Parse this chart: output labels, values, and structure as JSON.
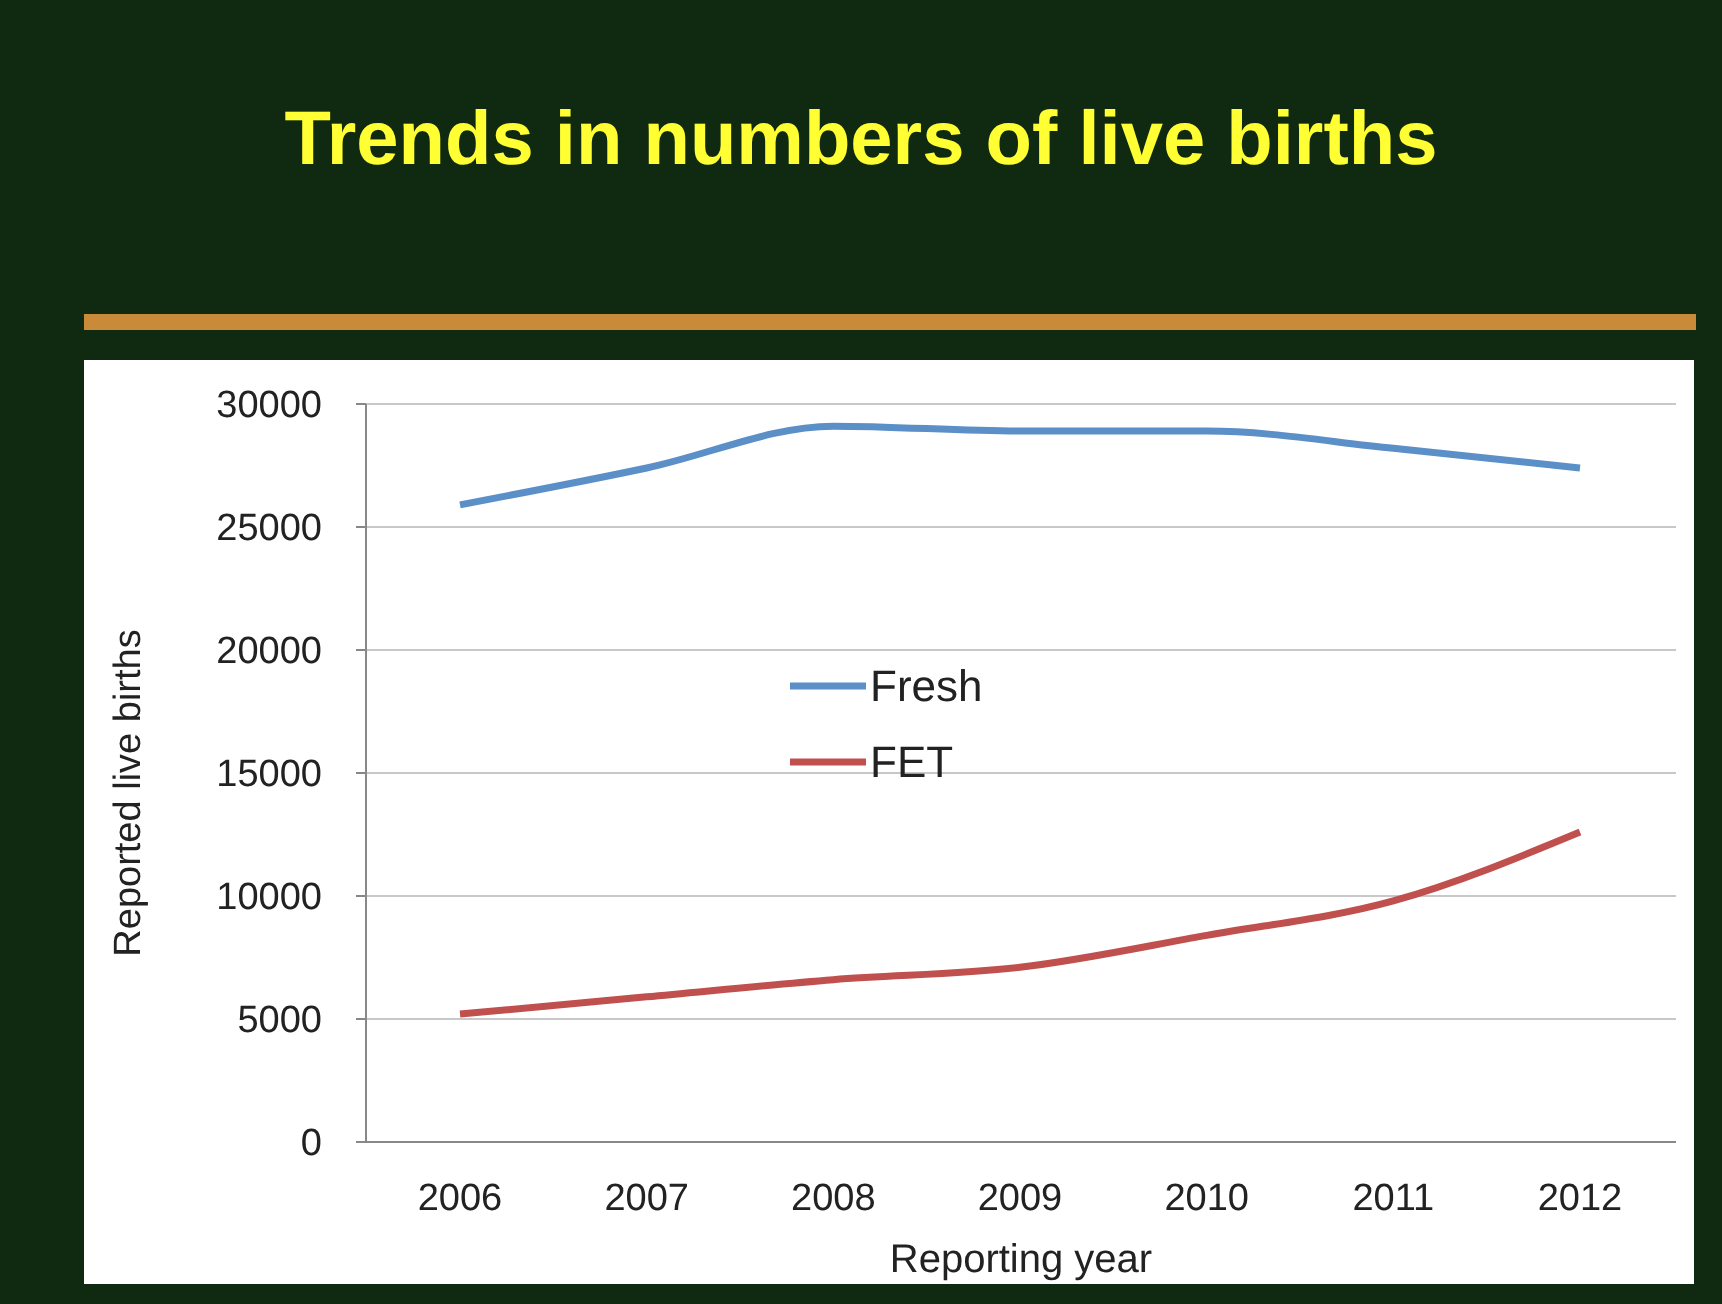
{
  "chart_data": {
    "type": "line",
    "title": "Trends in numbers of live births",
    "xlabel": "Reporting year",
    "ylabel": "Reported live births",
    "categories": [
      "2006",
      "2007",
      "2008",
      "2009",
      "2010",
      "2011",
      "2012"
    ],
    "series": [
      {
        "name": "Fresh",
        "color": "#5b8fc7",
        "values": [
          25900,
          27400,
          29100,
          28900,
          28900,
          28200,
          27400
        ]
      },
      {
        "name": "FET",
        "color": "#c0504d",
        "values": [
          5200,
          5900,
          6600,
          7100,
          8400,
          9800,
          12600
        ]
      }
    ],
    "ylim": [
      0,
      30000
    ],
    "yticks": [
      0,
      5000,
      10000,
      15000,
      20000,
      25000,
      30000
    ],
    "grid": "y",
    "legend": "center",
    "marker": "none",
    "line_style": "solid"
  }
}
